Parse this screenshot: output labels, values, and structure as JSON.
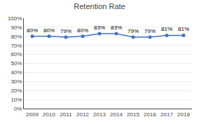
{
  "chart_data": {
    "type": "line",
    "title": "Retention Rate",
    "x": [
      2009,
      2010,
      2011,
      2012,
      2013,
      2014,
      2015,
      2016,
      2017,
      2018
    ],
    "values": [
      0.8,
      0.8,
      0.79,
      0.8,
      0.83,
      0.83,
      0.79,
      0.79,
      0.81,
      0.81
    ],
    "value_labels": [
      "80%",
      "80%",
      "79%",
      "80%",
      "83%",
      "83%",
      "79%",
      "79%",
      "81%",
      "81%"
    ],
    "color": "#4472C4",
    "marker": "circle",
    "xlim": [
      2008.5,
      2018.5
    ],
    "xticks": [
      2009,
      2010,
      2011,
      2012,
      2013,
      2014,
      2015,
      2016,
      2017,
      2018
    ],
    "ylim": [
      0.0,
      1.0
    ],
    "yticks": [
      {
        "value": 0.0,
        "label": "0%"
      },
      {
        "value": 0.1,
        "label": "10%"
      },
      {
        "value": 0.2,
        "label": "20%"
      },
      {
        "value": 0.3,
        "label": "30%"
      },
      {
        "value": 0.4,
        "label": "40%"
      },
      {
        "value": 0.5,
        "label": "50%"
      },
      {
        "value": 0.6,
        "label": "60%"
      },
      {
        "value": 0.7,
        "label": "70%"
      },
      {
        "value": 0.8,
        "label": "80%"
      },
      {
        "value": 0.9,
        "label": "90%"
      },
      {
        "value": 1.0,
        "label": "100%"
      }
    ],
    "grid": true,
    "data_labels": true
  }
}
